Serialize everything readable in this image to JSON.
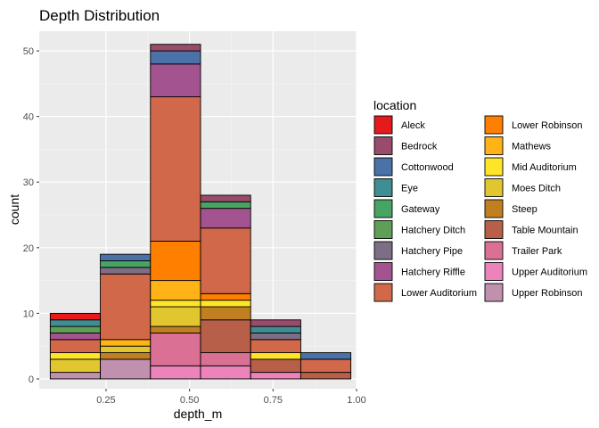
{
  "chart_data": {
    "type": "bar",
    "stacked": true,
    "title": "Depth Distribution",
    "xlabel": "depth_m",
    "ylabel": "count",
    "xlim": [
      0.05,
      1.0
    ],
    "ylim": [
      -1.5,
      53
    ],
    "xticks": [
      0.25,
      0.5,
      0.75,
      1.0
    ],
    "xtick_labels": [
      "0.25",
      "0.50",
      "0.75",
      "1.00"
    ],
    "yticks": [
      0,
      10,
      20,
      30,
      40,
      50
    ],
    "ytick_labels": [
      "0",
      "10",
      "20",
      "30",
      "40",
      "50"
    ],
    "grid": true,
    "legend_position": "right",
    "legend_title": "location",
    "bins": [
      {
        "xmin": 0.083,
        "xmax": 0.233
      },
      {
        "xmin": 0.233,
        "xmax": 0.383
      },
      {
        "xmin": 0.383,
        "xmax": 0.533
      },
      {
        "xmin": 0.533,
        "xmax": 0.683
      },
      {
        "xmin": 0.683,
        "xmax": 0.833
      },
      {
        "xmin": 0.833,
        "xmax": 0.983
      }
    ],
    "series": [
      {
        "name": "Aleck",
        "color": "#E41A1C",
        "values": [
          1,
          0,
          0,
          0,
          0,
          0
        ]
      },
      {
        "name": "Bedrock",
        "color": "#984B6B",
        "values": [
          0,
          0,
          1,
          1,
          1,
          0
        ]
      },
      {
        "name": "Cottonwood",
        "color": "#4A72A6",
        "values": [
          0,
          1,
          2,
          0,
          0,
          1
        ]
      },
      {
        "name": "Eye",
        "color": "#3E8E93",
        "values": [
          1,
          0,
          0,
          0,
          1,
          0
        ]
      },
      {
        "name": "Gateway",
        "color": "#48A462",
        "values": [
          0,
          1,
          0,
          1,
          0,
          0
        ]
      },
      {
        "name": "Hatchery Ditch",
        "color": "#5E9E57",
        "values": [
          1,
          0,
          0,
          0,
          0,
          0
        ]
      },
      {
        "name": "Hatchery Pipe",
        "color": "#7E6E85",
        "values": [
          0,
          1,
          0,
          0,
          1,
          0
        ]
      },
      {
        "name": "Hatchery Riffle",
        "color": "#A35390",
        "values": [
          1,
          0,
          5,
          3,
          0,
          0
        ]
      },
      {
        "name": "Lower Auditorium",
        "color": "#D1684A",
        "values": [
          2,
          10,
          22,
          10,
          2,
          2
        ]
      },
      {
        "name": "Lower Robinson",
        "color": "#FF7F00",
        "values": [
          0,
          0,
          6,
          1,
          0,
          0
        ]
      },
      {
        "name": "Mathews",
        "color": "#FFB316",
        "values": [
          0,
          1,
          3,
          0,
          0,
          0
        ]
      },
      {
        "name": "Mid Auditorium",
        "color": "#FFE528",
        "values": [
          1,
          0,
          1,
          1,
          1,
          0
        ]
      },
      {
        "name": "Moes Ditch",
        "color": "#E1C62F",
        "values": [
          2,
          1,
          3,
          0,
          0,
          0
        ]
      },
      {
        "name": "Steep",
        "color": "#C08022",
        "values": [
          0,
          1,
          1,
          2,
          0,
          0
        ]
      },
      {
        "name": "Table Mountain",
        "color": "#B85F49",
        "values": [
          0,
          0,
          0,
          5,
          2,
          1
        ]
      },
      {
        "name": "Trailer Park",
        "color": "#DA7093",
        "values": [
          0,
          0,
          5,
          2,
          0,
          0
        ]
      },
      {
        "name": "Upper Auditorium",
        "color": "#EC83BA",
        "values": [
          0,
          0,
          2,
          2,
          1,
          0
        ]
      },
      {
        "name": "Upper Robinson",
        "color": "#C090AE",
        "values": [
          1,
          3,
          0,
          0,
          0,
          0
        ]
      }
    ]
  }
}
